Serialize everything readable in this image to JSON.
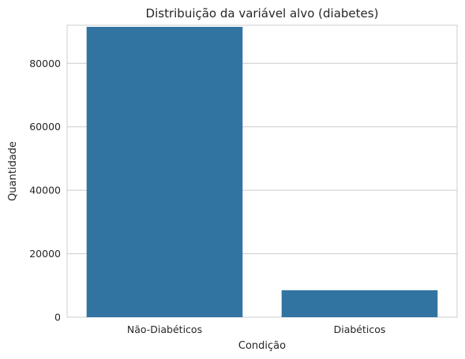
{
  "chart_data": {
    "type": "bar",
    "title": "Distribuição da variável alvo (diabetes)",
    "xlabel": "Condição",
    "ylabel": "Quantidade",
    "categories": [
      "Não-Diabéticos",
      "Diabéticos"
    ],
    "values": [
      91500,
      8500
    ],
    "ylim": [
      0,
      92000
    ],
    "yticks": [
      0,
      20000,
      40000,
      60000,
      80000
    ],
    "ytick_labels": [
      "0",
      "20000",
      "40000",
      "60000",
      "80000"
    ],
    "grid": true,
    "bar_color": "#3274a1",
    "grid_color": "#cccccc"
  }
}
